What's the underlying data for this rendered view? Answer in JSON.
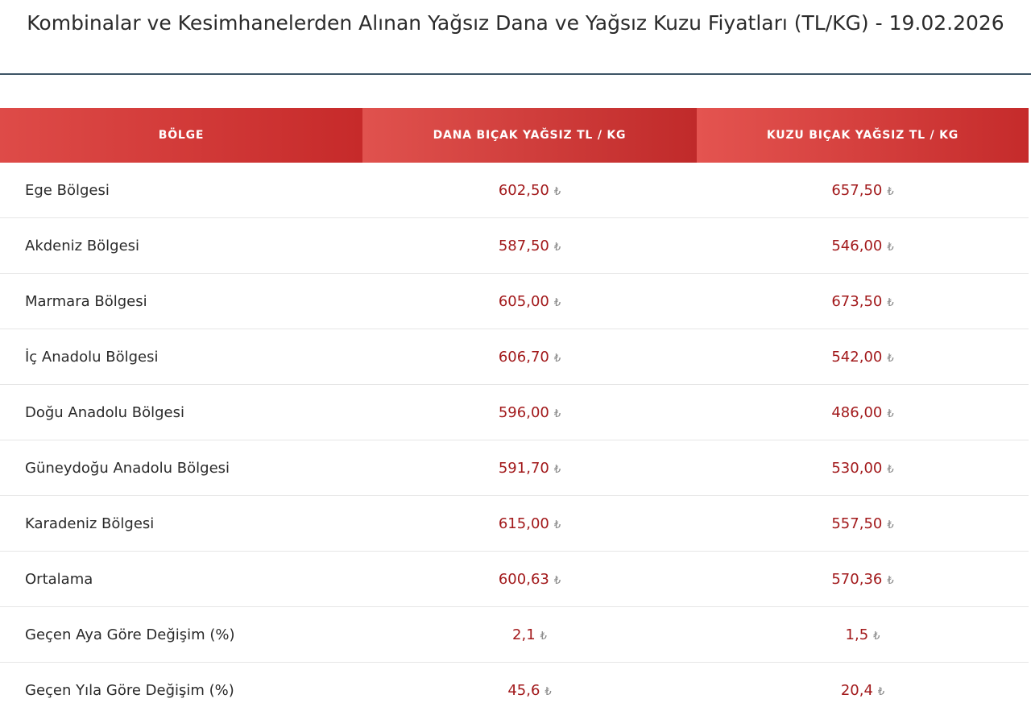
{
  "title": "Kombinalar ve Kesimhanelerden Alınan Yağsız Dana ve Yağsız Kuzu Fiyatları (TL/KG) - 19.02.2026",
  "table": {
    "headers": [
      "BÖLGE",
      "DANA BIÇAK YAĞSIZ TL / KG",
      "KUZU BIÇAK YAĞSIZ TL / KG"
    ],
    "currency_symbol": "₺",
    "rows": [
      {
        "region": "Ege Bölgesi",
        "dana": "602,50",
        "kuzu": "657,50"
      },
      {
        "region": "Akdeniz Bölgesi",
        "dana": "587,50",
        "kuzu": "546,00"
      },
      {
        "region": "Marmara Bölgesi",
        "dana": "605,00",
        "kuzu": "673,50"
      },
      {
        "region": "İç Anadolu Bölgesi",
        "dana": "606,70",
        "kuzu": "542,00"
      },
      {
        "region": "Doğu Anadolu Bölgesi",
        "dana": "596,00",
        "kuzu": "486,00"
      },
      {
        "region": "Güneydoğu Anadolu Bölgesi",
        "dana": "591,70",
        "kuzu": "530,00"
      },
      {
        "region": "Karadeniz Bölgesi",
        "dana": "615,00",
        "kuzu": "557,50"
      },
      {
        "region": "Ortalama",
        "dana": "600,63",
        "kuzu": "570,36"
      },
      {
        "region": "Geçen Aya Göre Değişim (%)",
        "dana": "2,1",
        "kuzu": "1,5"
      },
      {
        "region": "Geçen Yıla Göre Değişim (%)",
        "dana": "45,6",
        "kuzu": "20,4"
      }
    ]
  }
}
